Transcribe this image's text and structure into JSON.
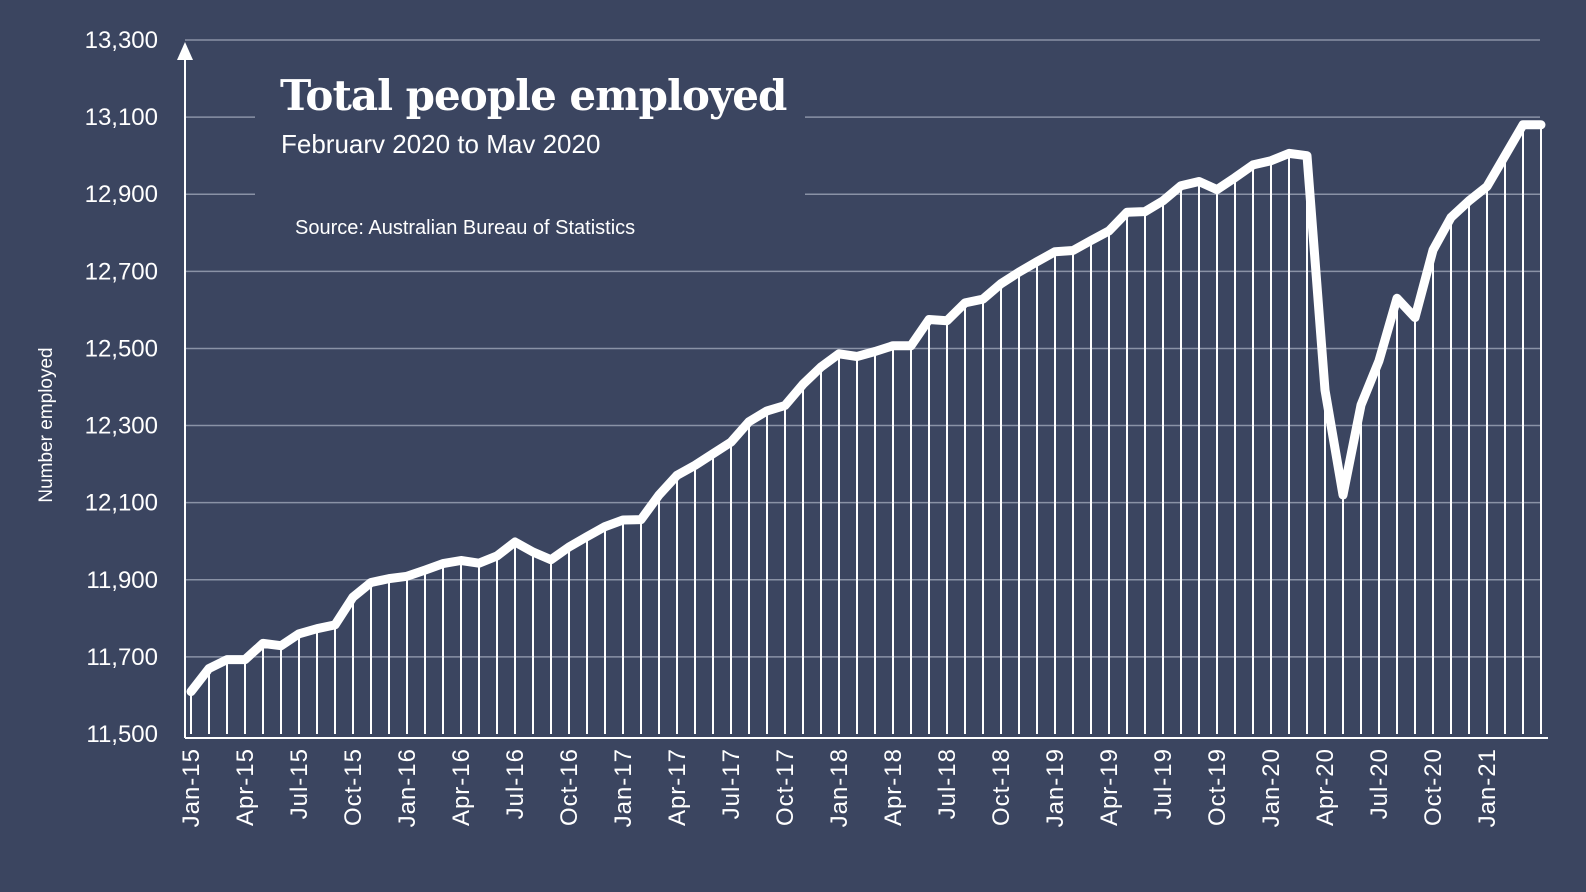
{
  "chart_data": {
    "type": "line",
    "title": "Total people employed",
    "subtitle": "Februarv 2020 to Mav 2020",
    "source": "Source:  Australian Bureau of Statistics",
    "ylabel": "Number employed",
    "xlabel": "",
    "ylim": [
      11500,
      13300
    ],
    "y_ticks": [
      "11,500",
      "11,700",
      "11,900",
      "12,100",
      "12,300",
      "12,500",
      "12,700",
      "12,900",
      "13,100",
      "13,300"
    ],
    "y_tick_values": [
      11500,
      11700,
      11900,
      12100,
      12300,
      12500,
      12700,
      12900,
      13100,
      13300
    ],
    "x_ticks": [
      "Jan-15",
      "Apr-15",
      "Jul-15",
      "Oct-15",
      "Jan-16",
      "Apr-16",
      "Jul-16",
      "Oct-16",
      "Jan-17",
      "Apr-17",
      "Jul-17",
      "Oct-17",
      "Jan-18",
      "Apr-18",
      "Jul-18",
      "Oct-18",
      "Jan-19",
      "Apr-19",
      "Jul-19",
      "Oct-19",
      "Jan-20",
      "Apr-20",
      "Jul-20",
      "Oct-20",
      "Jan-21"
    ],
    "grid": true,
    "legend": "none",
    "colors": {
      "background": "#3b4560",
      "line": "#ffffff",
      "grid": "#8a92a6"
    },
    "series": [
      {
        "x": [
          "Jan-15",
          "Feb-15",
          "Mar-15",
          "Apr-15",
          "May-15",
          "Jun-15",
          "Jul-15",
          "Aug-15",
          "Sep-15",
          "Oct-15",
          "Nov-15",
          "Dec-15",
          "Jan-16",
          "Feb-16",
          "Mar-16",
          "Apr-16",
          "May-16",
          "Jun-16",
          "Jul-16",
          "Aug-16",
          "Sep-16",
          "Oct-16",
          "Nov-16",
          "Dec-16",
          "Jan-17",
          "Feb-17",
          "Mar-17",
          "Apr-17",
          "May-17",
          "Jun-17",
          "Jul-17",
          "Aug-17",
          "Sep-17",
          "Oct-17",
          "Nov-17",
          "Dec-17",
          "Jan-18",
          "Feb-18",
          "Mar-18",
          "Apr-18",
          "May-18",
          "Jun-18",
          "Jul-18",
          "Aug-18",
          "Sep-18",
          "Oct-18",
          "Nov-18",
          "Dec-18",
          "Jan-19",
          "Feb-19",
          "Mar-19",
          "Apr-19",
          "May-19",
          "Jun-19",
          "Jul-19",
          "Aug-19",
          "Sep-19",
          "Oct-19",
          "Nov-19",
          "Dec-19",
          "Jan-20",
          "Feb-20",
          "Mar-20",
          "Apr-20",
          "May-20",
          "Jun-20",
          "Jul-20",
          "Aug-20",
          "Sep-20",
          "Oct-20",
          "Nov-20",
          "Dec-20",
          "Jan-21",
          "Feb-21",
          "Mar-21",
          "Apr-21"
        ],
        "values": [
          11610,
          11670,
          11693,
          11693,
          11735,
          11729,
          11760,
          11773,
          11783,
          11855,
          11893,
          11903,
          11909,
          11925,
          11942,
          11950,
          11943,
          11962,
          11998,
          11972,
          11952,
          11985,
          12012,
          12038,
          12055,
          12056,
          12120,
          12171,
          12197,
          12227,
          12257,
          12310,
          12338,
          12352,
          12407,
          12452,
          12486,
          12479,
          12492,
          12507,
          12507,
          12575,
          12572,
          12618,
          12628,
          12668,
          12698,
          12725,
          12751,
          12754,
          12780,
          12805,
          12853,
          12855,
          12883,
          12922,
          12933,
          12912,
          12943,
          12976,
          12987,
          13006,
          13000,
          12392,
          12120,
          12353,
          12468,
          12630,
          12580,
          12755,
          12840,
          12883,
          12920,
          13000,
          13080,
          13080
        ]
      }
    ]
  }
}
